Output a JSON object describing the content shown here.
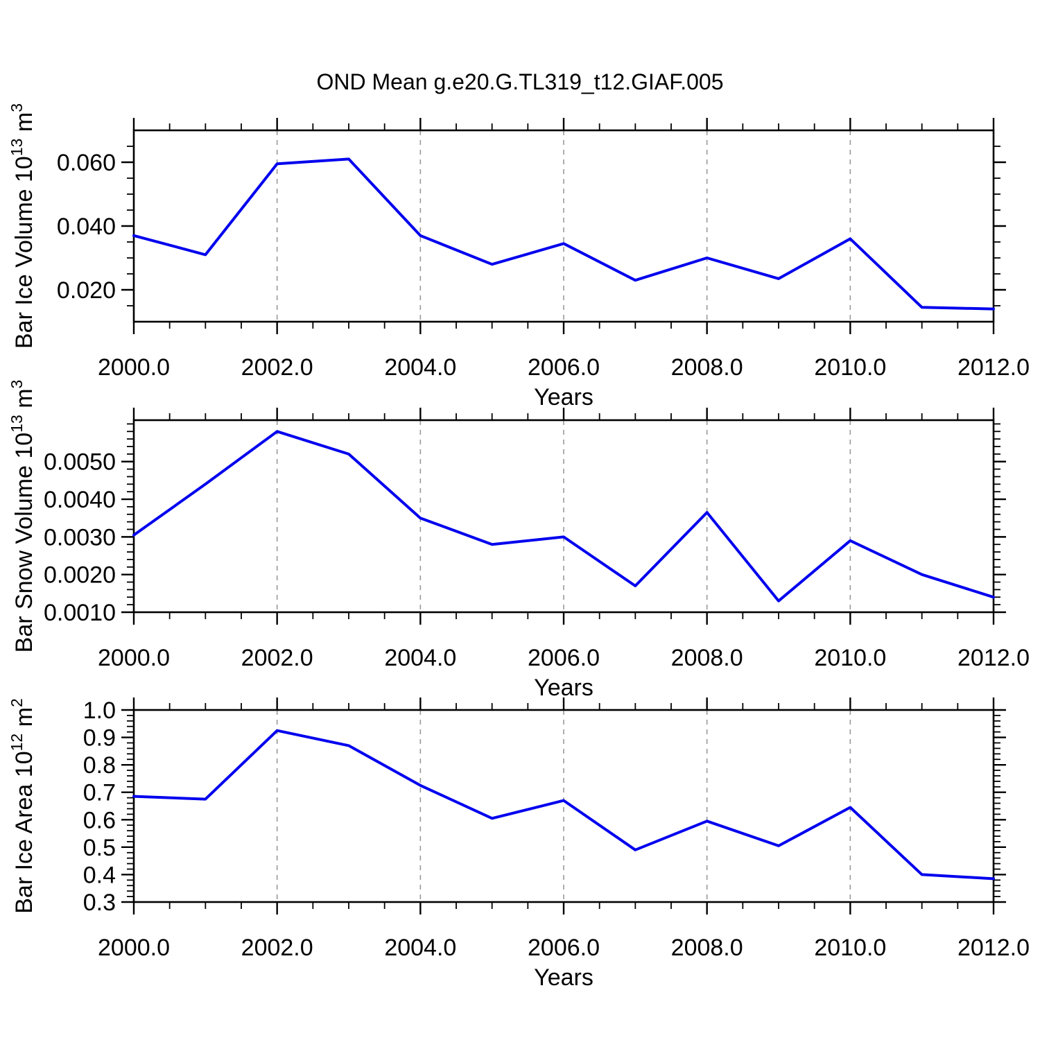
{
  "title": "OND Mean g.e20.G.TL319_t12.GIAF.005",
  "colors": {
    "line": "#0000ee",
    "axis": "#000000",
    "grid": "#999999",
    "text": "#000000",
    "background": "#ffffff"
  },
  "x_axis": {
    "label": "Years",
    "min": 2000.0,
    "max": 2012.0,
    "minor_step": 0.5,
    "ticks": [
      {
        "value": 2000.0,
        "label": "2000.0"
      },
      {
        "value": 2002.0,
        "label": "2002.0"
      },
      {
        "value": 2004.0,
        "label": "2004.0"
      },
      {
        "value": 2006.0,
        "label": "2006.0"
      },
      {
        "value": 2008.0,
        "label": "2008.0"
      },
      {
        "value": 2010.0,
        "label": "2010.0"
      },
      {
        "value": 2012.0,
        "label": "2012.0"
      }
    ],
    "gridlines": [
      2002,
      2004,
      2006,
      2008,
      2010
    ]
  },
  "chart_data": [
    {
      "type": "line",
      "ylabel": "Bar Ice Volume 10^13 m^3",
      "ylabel_segments": [
        {
          "t": "Bar Ice Volume 10",
          "sup": false
        },
        {
          "t": "13",
          "sup": true
        },
        {
          "t": " m",
          "sup": false
        },
        {
          "t": "3",
          "sup": true
        }
      ],
      "xlabel": "Years",
      "x": [
        2000,
        2001,
        2002,
        2003,
        2004,
        2005,
        2006,
        2007,
        2008,
        2009,
        2010,
        2011,
        2012
      ],
      "values": [
        0.037,
        0.031,
        0.0595,
        0.061,
        0.037,
        0.028,
        0.0345,
        0.023,
        0.03,
        0.0235,
        0.036,
        0.0145,
        0.014
      ],
      "ylim": [
        0.01,
        0.07
      ],
      "yticks": [
        {
          "value": 0.02,
          "label": "0.020"
        },
        {
          "value": 0.04,
          "label": "0.040"
        },
        {
          "value": 0.06,
          "label": "0.060"
        }
      ],
      "minor_step_y": 0.005,
      "grid": true,
      "legend": "none"
    },
    {
      "type": "line",
      "ylabel": "Bar Snow Volume 10^13 m^3",
      "ylabel_segments": [
        {
          "t": "Bar Snow Volume 10",
          "sup": false
        },
        {
          "t": "13",
          "sup": true
        },
        {
          "t": " m",
          "sup": false
        },
        {
          "t": "3",
          "sup": true
        }
      ],
      "xlabel": "Years",
      "x": [
        2000,
        2001,
        2002,
        2003,
        2004,
        2005,
        2006,
        2007,
        2008,
        2009,
        2010,
        2011,
        2012
      ],
      "values": [
        0.00305,
        0.0044,
        0.0058,
        0.0052,
        0.0035,
        0.0028,
        0.003,
        0.0017,
        0.00365,
        0.0013,
        0.0029,
        0.002,
        0.0014
      ],
      "ylim": [
        0.001,
        0.0061
      ],
      "yticks": [
        {
          "value": 0.001,
          "label": "0.0010"
        },
        {
          "value": 0.002,
          "label": "0.0020"
        },
        {
          "value": 0.003,
          "label": "0.0030"
        },
        {
          "value": 0.004,
          "label": "0.0040"
        },
        {
          "value": 0.005,
          "label": "0.0050"
        }
      ],
      "minor_step_y": 0.0002,
      "grid": true,
      "legend": "none"
    },
    {
      "type": "line",
      "ylabel": "Bar Ice Area 10^12 m^2",
      "ylabel_segments": [
        {
          "t": "Bar Ice Area 10",
          "sup": false
        },
        {
          "t": "12",
          "sup": true
        },
        {
          "t": " m",
          "sup": false
        },
        {
          "t": "2",
          "sup": true
        }
      ],
      "xlabel": "Years",
      "x": [
        2000,
        2001,
        2002,
        2003,
        2004,
        2005,
        2006,
        2007,
        2008,
        2009,
        2010,
        2011,
        2012
      ],
      "values": [
        0.685,
        0.675,
        0.925,
        0.87,
        0.725,
        0.605,
        0.67,
        0.49,
        0.595,
        0.505,
        0.645,
        0.4,
        0.385
      ],
      "ylim": [
        0.3,
        1.0
      ],
      "yticks": [
        {
          "value": 0.3,
          "label": "0.3"
        },
        {
          "value": 0.4,
          "label": "0.4"
        },
        {
          "value": 0.5,
          "label": "0.5"
        },
        {
          "value": 0.6,
          "label": "0.6"
        },
        {
          "value": 0.7,
          "label": "0.7"
        },
        {
          "value": 0.8,
          "label": "0.8"
        },
        {
          "value": 0.9,
          "label": "0.9"
        },
        {
          "value": 1.0,
          "label": "1.0"
        }
      ],
      "minor_step_y": 0.02,
      "grid": true,
      "legend": "none"
    }
  ]
}
